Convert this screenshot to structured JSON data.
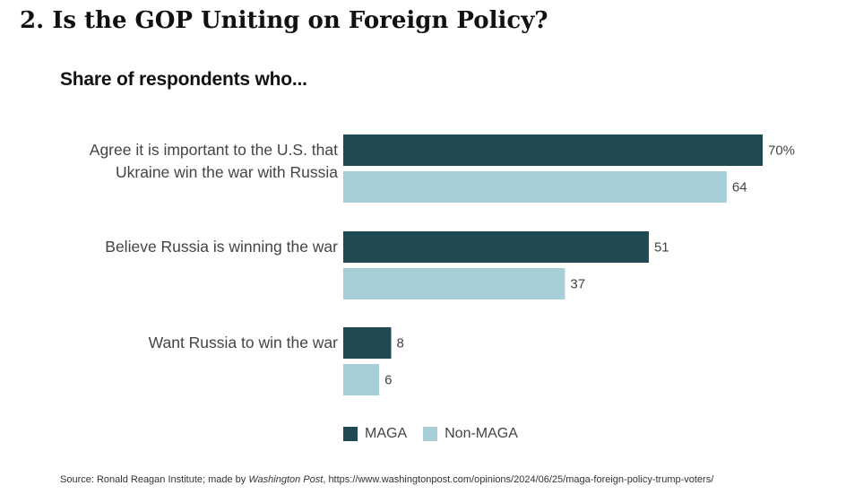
{
  "heading": "2. Is the GOP Uniting on Foreign Policy?",
  "chart_data": {
    "type": "bar",
    "orientation": "horizontal",
    "subtitle": "Share of respondents who...",
    "categories": [
      [
        "Agree it is important to the U.S. that",
        "Ukraine win the war with Russia"
      ],
      [
        "Believe Russia is winning the war"
      ],
      [
        "Want Russia to win the war"
      ]
    ],
    "series": [
      {
        "name": "MAGA",
        "color": "#1f4a51",
        "values": [
          70,
          51,
          8
        ],
        "labels": [
          "70%",
          "51",
          "8"
        ]
      },
      {
        "name": "Non-MAGA",
        "color": "#a5ced6",
        "values": [
          64,
          37,
          6
        ],
        "labels": [
          "64",
          "37",
          "6"
        ]
      }
    ],
    "xlim": [
      0,
      70
    ],
    "legend_position": "bottom",
    "grid": false
  },
  "source": {
    "prefix": "Source: Ronald Reagan Institute; made by ",
    "publisher": "Washington Post",
    "suffix": ", https://www.washingtonpost.com/opinions/2024/06/25/maga-foreign-policy-trump-voters/"
  }
}
